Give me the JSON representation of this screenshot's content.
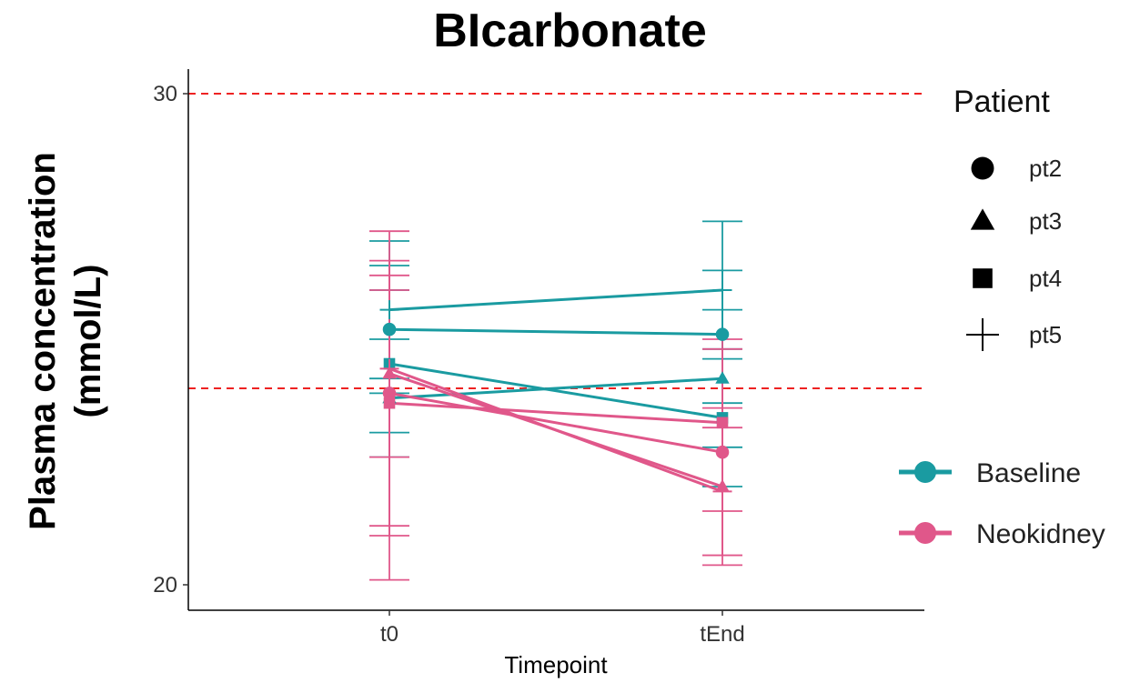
{
  "chart_data": {
    "type": "line",
    "title": "BIcarbonate",
    "ylabel_line1": "Plasma concentration",
    "ylabel_line2": "(mmol/L)",
    "xlabel": "Timepoint",
    "categories": [
      "t0",
      "tEnd"
    ],
    "ylim": [
      19.5,
      30.5
    ],
    "yticks": [
      20,
      30
    ],
    "reference_lines": [
      30,
      24
    ],
    "reference_line_color": "#ee2222",
    "grid": false,
    "shape_legend": {
      "title": "Patient",
      "items": [
        {
          "label": "pt2",
          "shape": "circle"
        },
        {
          "label": "pt3",
          "shape": "triangle"
        },
        {
          "label": "pt4",
          "shape": "square"
        },
        {
          "label": "pt5",
          "shape": "plus"
        }
      ]
    },
    "color_legend": {
      "items": [
        {
          "label": "Baseline",
          "color": "#1a9ba1"
        },
        {
          "label": "Neokidney",
          "color": "#e0578a"
        }
      ]
    },
    "series": [
      {
        "group": "Baseline",
        "patient": "pt2",
        "shape": "circle",
        "values": [
          25.2,
          25.1
        ],
        "lower": [
          23.9,
          23.7
        ],
        "upper": [
          26.5,
          26.4
        ]
      },
      {
        "group": "Baseline",
        "patient": "pt3",
        "shape": "triangle",
        "values": [
          23.8,
          24.2
        ],
        "lower": [
          22.6,
          22.8
        ],
        "upper": [
          25.0,
          25.6
        ]
      },
      {
        "group": "Baseline",
        "patient": "pt4",
        "shape": "square",
        "values": [
          24.5,
          23.4
        ],
        "lower": [
          23.1,
          22.0
        ],
        "upper": [
          26.0,
          24.8
        ]
      },
      {
        "group": "Baseline",
        "patient": "pt5",
        "shape": "plus",
        "values": [
          25.6,
          26.0
        ],
        "lower": [
          24.2,
          24.6
        ],
        "upper": [
          27.0,
          27.4
        ]
      },
      {
        "group": "Neokidney",
        "patient": "pt2",
        "shape": "circle",
        "values": [
          23.9,
          22.7
        ],
        "lower": [
          21.2,
          20.6
        ],
        "upper": [
          26.6,
          24.8
        ]
      },
      {
        "group": "Neokidney",
        "patient": "pt3",
        "shape": "triangle",
        "values": [
          24.3,
          22.0
        ],
        "lower": [
          20.1,
          20.4
        ],
        "upper": [
          27.2,
          23.2
        ]
      },
      {
        "group": "Neokidney",
        "patient": "pt4",
        "shape": "square",
        "values": [
          23.7,
          23.3
        ],
        "lower": [
          21.0,
          21.5
        ],
        "upper": [
          26.3,
          25.0
        ]
      },
      {
        "group": "Neokidney",
        "patient": "pt5",
        "shape": "plus",
        "values": [
          24.4,
          21.9
        ],
        "lower": [
          22.6,
          20.6
        ],
        "upper": [
          26.0,
          23.6
        ]
      }
    ]
  }
}
